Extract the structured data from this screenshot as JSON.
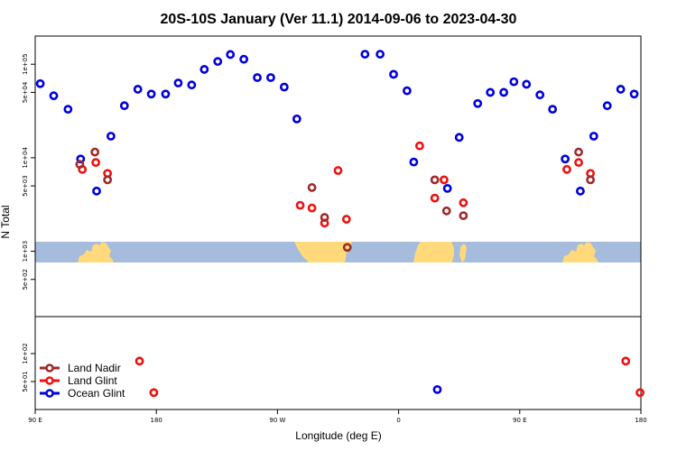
{
  "chart_data": {
    "type": "scatter",
    "title": "20S-10S January (Ver 11.1)   2014-09-06 to 2023-04-30",
    "xlabel": "Longitude (deg E)",
    "ylabel": "N Total",
    "xlim": [
      0,
      360
    ],
    "x_ticks": [
      {
        "pos": 0,
        "label": "90 E"
      },
      {
        "pos": 72,
        "label": "180"
      },
      {
        "pos": 144,
        "label": "90 W"
      },
      {
        "pos": 216,
        "label": "0"
      },
      {
        "pos": 288,
        "label": "90 E"
      },
      {
        "pos": 360,
        "label": "180"
      }
    ],
    "y_scale": "log",
    "upper_ylim": [
      200,
      200000
    ],
    "upper_y_ticks": [
      {
        "value": 100000,
        "label": "1e+05"
      },
      {
        "value": 50000,
        "label": "5e+04"
      },
      {
        "value": 10000,
        "label": "1e+04"
      },
      {
        "value": 5000,
        "label": "5e+03"
      },
      {
        "value": 1000,
        "label": "1e+03"
      },
      {
        "value": 500,
        "label": "5e+02"
      }
    ],
    "lower_ylim": [
      25,
      250
    ],
    "lower_y_ticks": [
      {
        "value": 100,
        "label": "1e+02"
      },
      {
        "value": 50,
        "label": "5e+01"
      }
    ],
    "legend": {
      "position": "bottom-left"
    },
    "colors": {
      "land_nadir": "#9e2a2a",
      "land_glint": "#ee1111",
      "ocean_glint": "#0000dd",
      "ocean_band": "#a5bcdc",
      "land_band": "#ffd97a"
    },
    "series": [
      {
        "name": "Land Nadir",
        "key": "land_nadir",
        "points": [
          [
            26.5,
            8500
          ],
          [
            35.5,
            11500
          ],
          [
            43,
            5800
          ],
          [
            164.5,
            4800
          ],
          [
            172,
            2300
          ],
          [
            185.5,
            1100
          ],
          [
            237.5,
            5800
          ],
          [
            244.5,
            2700
          ],
          [
            254.5,
            2400
          ],
          [
            323,
            11500
          ],
          [
            330,
            5800
          ]
        ]
      },
      {
        "name": "Land Glint",
        "key": "land_glint",
        "points": [
          [
            28,
            7500
          ],
          [
            36,
            8900
          ],
          [
            43,
            6800
          ],
          [
            157.5,
            3100
          ],
          [
            164.5,
            2900
          ],
          [
            172,
            2000
          ],
          [
            180,
            7300
          ],
          [
            185,
            2200
          ],
          [
            228.5,
            13400
          ],
          [
            237.5,
            3700
          ],
          [
            243,
            5800
          ],
          [
            254.5,
            3300
          ],
          [
            316,
            7500
          ],
          [
            323,
            8900
          ],
          [
            330,
            6800
          ]
        ]
      },
      {
        "name": "Ocean Glint",
        "key": "ocean_glint",
        "points": [
          [
            3,
            62000
          ],
          [
            11,
            46000
          ],
          [
            19.5,
            33000
          ],
          [
            27,
            9700
          ],
          [
            36.5,
            4400
          ],
          [
            45,
            17000
          ],
          [
            53,
            36000
          ],
          [
            61,
            54000
          ],
          [
            69,
            48000
          ],
          [
            77.5,
            48000
          ],
          [
            85,
            63000
          ],
          [
            93,
            60000
          ],
          [
            100.5,
            88000
          ],
          [
            108.5,
            107000
          ],
          [
            116,
            127000
          ],
          [
            124,
            113000
          ],
          [
            132,
            72000
          ],
          [
            140,
            72000
          ],
          [
            148,
            57000
          ],
          [
            155.5,
            26000
          ],
          [
            196,
            128000
          ],
          [
            205,
            128000
          ],
          [
            213,
            78000
          ],
          [
            221,
            52000
          ],
          [
            225,
            9000
          ],
          [
            245,
            4700
          ],
          [
            252,
            16500
          ],
          [
            263,
            38000
          ],
          [
            270.5,
            50000
          ],
          [
            278.5,
            50000
          ],
          [
            284.5,
            65000
          ],
          [
            292,
            61000
          ],
          [
            300,
            47000
          ],
          [
            307.5,
            33000
          ],
          [
            315,
            9700
          ],
          [
            324,
            4400
          ],
          [
            332,
            17000
          ],
          [
            340,
            36000
          ],
          [
            348,
            54000
          ],
          [
            356,
            48000
          ]
        ]
      }
    ],
    "lower_series": [
      {
        "key": "land_glint",
        "points": [
          [
            62,
            83
          ],
          [
            70.5,
            38
          ],
          [
            351,
            83
          ],
          [
            359.5,
            38
          ]
        ]
      },
      {
        "key": "ocean_glint",
        "points": [
          [
            239,
            41
          ]
        ]
      }
    ]
  }
}
